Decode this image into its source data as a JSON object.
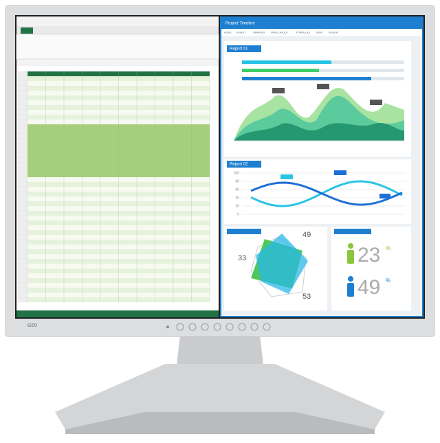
{
  "window": {
    "title": "Project Timeline",
    "tabs": [
      "HOME",
      "INSERT",
      "DRAWING",
      "PAGE LAYOUT",
      "FORMULAS",
      "DATA",
      "REVIEW"
    ]
  },
  "report1": {
    "title": "Report 01"
  },
  "report2": {
    "title": "Report 02",
    "yticks": [
      "100",
      "80",
      "60",
      "40",
      "20",
      "0"
    ]
  },
  "radar": {
    "labels": [
      "49",
      "33",
      "53"
    ]
  },
  "people": {
    "stats": [
      {
        "value": "23",
        "unit": "%"
      },
      {
        "value": "49",
        "unit": "%"
      }
    ]
  },
  "brand": "EIZO"
}
